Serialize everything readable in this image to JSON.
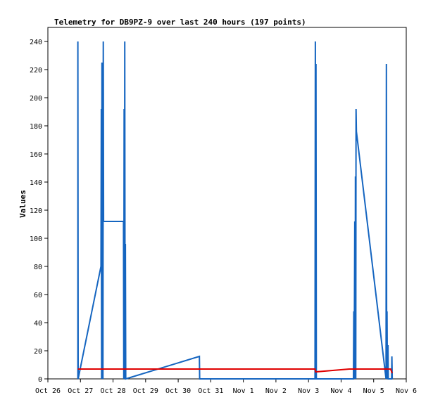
{
  "chart_data": {
    "type": "line",
    "title": "Telemetry for DB9PZ-9 over last 240 hours (197 points)",
    "ylabel": "Values",
    "xlabel": "",
    "ylim": [
      0,
      250
    ],
    "xlim": [
      0,
      11
    ],
    "x_ticks": [
      {
        "label": "Oct 26",
        "x": 0
      },
      {
        "label": "Oct 27",
        "x": 1
      },
      {
        "label": "Oct 28",
        "x": 2
      },
      {
        "label": "Oct 29",
        "x": 3
      },
      {
        "label": "Oct 30",
        "x": 4
      },
      {
        "label": "Oct 31",
        "x": 5
      },
      {
        "label": "Nov 1",
        "x": 6
      },
      {
        "label": "Nov 2",
        "x": 7
      },
      {
        "label": "Nov 3",
        "x": 8
      },
      {
        "label": "Nov 4",
        "x": 9
      },
      {
        "label": "Nov 5",
        "x": 10
      },
      {
        "label": "Nov 6",
        "x": 11
      }
    ],
    "y_ticks": [
      0,
      20,
      40,
      60,
      80,
      100,
      120,
      140,
      160,
      180,
      200,
      220,
      240
    ],
    "grid": false,
    "series": [
      {
        "color": "#1565c0",
        "points": [
          [
            0.92,
            0
          ],
          [
            0.92,
            240
          ],
          [
            0.93,
            0
          ],
          [
            1.63,
            80
          ],
          [
            1.64,
            192
          ],
          [
            1.65,
            0
          ],
          [
            1.66,
            225
          ],
          [
            1.67,
            0
          ],
          [
            1.68,
            208
          ],
          [
            1.69,
            0
          ],
          [
            1.7,
            240
          ],
          [
            1.71,
            112
          ],
          [
            2.32,
            112
          ],
          [
            2.33,
            0
          ],
          [
            2.34,
            192
          ],
          [
            2.35,
            0
          ],
          [
            2.36,
            240
          ],
          [
            2.37,
            0
          ],
          [
            2.38,
            96
          ],
          [
            2.39,
            0
          ],
          [
            4.65,
            16
          ],
          [
            4.66,
            0
          ],
          [
            8.2,
            0
          ],
          [
            8.21,
            240
          ],
          [
            8.22,
            0
          ],
          [
            8.23,
            224
          ],
          [
            8.24,
            0
          ],
          [
            9.38,
            0
          ],
          [
            9.39,
            48
          ],
          [
            9.4,
            0
          ],
          [
            9.42,
            112
          ],
          [
            9.43,
            0
          ],
          [
            9.44,
            144
          ],
          [
            9.45,
            0
          ],
          [
            9.46,
            192
          ],
          [
            9.47,
            176
          ],
          [
            10.38,
            0
          ],
          [
            10.39,
            224
          ],
          [
            10.4,
            0
          ],
          [
            10.41,
            48
          ],
          [
            10.42,
            0
          ],
          [
            10.44,
            24
          ],
          [
            10.45,
            0
          ],
          [
            10.47,
            0
          ],
          [
            10.55,
            0
          ],
          [
            10.56,
            16
          ],
          [
            10.57,
            0
          ]
        ]
      },
      {
        "color": "#e00000",
        "points": [
          [
            0.92,
            7
          ],
          [
            8.2,
            7
          ],
          [
            8.22,
            5
          ],
          [
            9.25,
            7
          ],
          [
            10.4,
            7
          ],
          [
            10.52,
            7
          ],
          [
            10.57,
            4
          ]
        ]
      }
    ]
  }
}
